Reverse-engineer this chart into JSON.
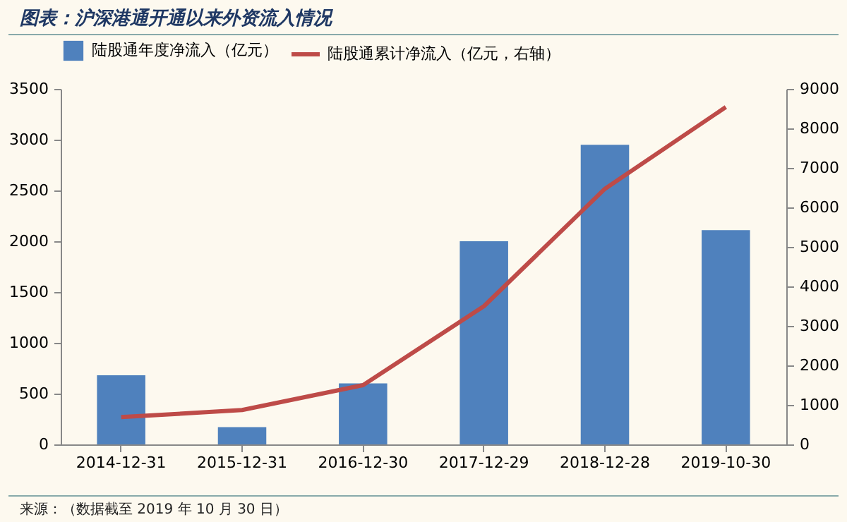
{
  "chart_data": {
    "type": "bar",
    "title": "图表：沪深港通开通以来外资流入情况",
    "categories": [
      "2014-12-31",
      "2015-12-31",
      "2016-12-30",
      "2017-12-29",
      "2018-12-28",
      "2019-10-30"
    ],
    "series": [
      {
        "name": "陆股通年度净流入（亿元）",
        "color": "#4f81bd",
        "values": [
          680,
          170,
          600,
          2000,
          2950,
          2110
        ]
      },
      {
        "name": "陆股通累计净流入（亿元，右轴）",
        "type": "line",
        "axis": "y2",
        "color": "#be4b48",
        "values": [
          690,
          870,
          1500,
          3500,
          6470,
          8540
        ]
      }
    ],
    "ylim": [
      0,
      3500
    ],
    "yticks": [
      0,
      500,
      1000,
      1500,
      2000,
      2500,
      3000,
      3500
    ],
    "y2lim": [
      0,
      9000
    ],
    "y2ticks": [
      0,
      1000,
      2000,
      3000,
      4000,
      5000,
      6000,
      7000,
      8000,
      9000
    ],
    "grid": false,
    "legend": "top",
    "annotations": [
      "来源：（数据截至 2019 年 10 月 30 日）"
    ]
  }
}
